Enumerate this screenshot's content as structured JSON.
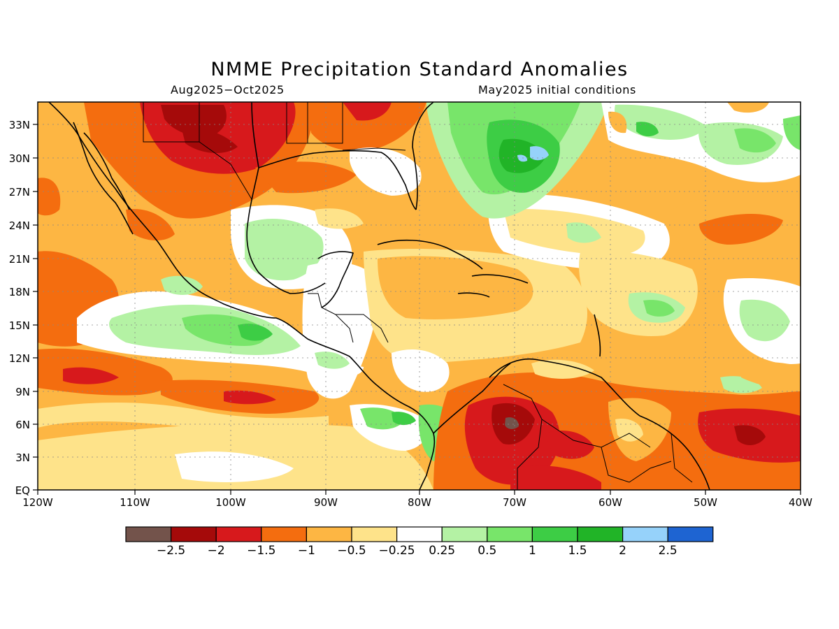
{
  "title": "NMME Precipitation Standard Anomalies",
  "period": "Aug2025−Oct2025",
  "initial_conditions": "May2025 initial conditions",
  "lat_labels": [
    "EQ",
    "3N",
    "6N",
    "9N",
    "12N",
    "15N",
    "18N",
    "21N",
    "24N",
    "27N",
    "30N",
    "33N"
  ],
  "lon_labels": [
    "120W",
    "110W",
    "100W",
    "90W",
    "80W",
    "70W",
    "60W",
    "50W",
    "40W"
  ],
  "legend": {
    "colors": [
      "#73534b",
      "#a50a0a",
      "#d7191c",
      "#f46d0f",
      "#fdb643",
      "#fee38a",
      "#ffffff",
      "#b4f2a4",
      "#78e56a",
      "#3dcd45",
      "#21b427",
      "#96d2fa",
      "#1e64d2"
    ],
    "labels": [
      "−2.5",
      "−2",
      "−1.5",
      "−1",
      "−0.5",
      "−0.25",
      "0.25",
      "0.5",
      "1",
      "1.5",
      "2",
      "2.5"
    ]
  }
}
